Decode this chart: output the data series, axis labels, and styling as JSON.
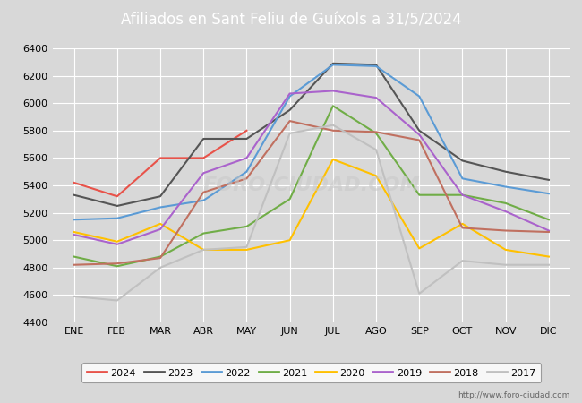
{
  "title": "Afiliados en Sant Feliu de Guíxols a 31/5/2024",
  "title_color": "#ffffff",
  "title_bg_color": "#4169b0",
  "background_color": "#d8d8d8",
  "plot_bg_color": "#d8d8d8",
  "ylim": [
    4400,
    6400
  ],
  "yticks": [
    4400,
    4600,
    4800,
    5000,
    5200,
    5400,
    5600,
    5800,
    6000,
    6200,
    6400
  ],
  "months": [
    "ENE",
    "FEB",
    "MAR",
    "ABR",
    "MAY",
    "JUN",
    "JUL",
    "AGO",
    "SEP",
    "OCT",
    "NOV",
    "DIC"
  ],
  "watermark": "http://www.foro-ciudad.com",
  "series": [
    {
      "label": "2024",
      "color": "#e8534a",
      "data": [
        5420,
        5320,
        5600,
        5600,
        5800,
        null,
        null,
        null,
        null,
        null,
        null,
        null
      ]
    },
    {
      "label": "2023",
      "color": "#555555",
      "data": [
        5330,
        5250,
        5320,
        5740,
        5740,
        5950,
        6290,
        6280,
        5800,
        5580,
        5500,
        5440
      ]
    },
    {
      "label": "2022",
      "color": "#5b9bd5",
      "data": [
        5150,
        5160,
        5240,
        5290,
        5500,
        6050,
        6280,
        6270,
        6050,
        5450,
        5390,
        5340
      ]
    },
    {
      "label": "2021",
      "color": "#70ad47",
      "data": [
        4880,
        4810,
        4880,
        5050,
        5100,
        5300,
        5980,
        5780,
        5330,
        5330,
        5270,
        5150
      ]
    },
    {
      "label": "2020",
      "color": "#ffc000",
      "data": [
        5060,
        4990,
        5120,
        4930,
        4930,
        5000,
        5590,
        5470,
        4940,
        5120,
        4930,
        4880
      ]
    },
    {
      "label": "2019",
      "color": "#aa63cc",
      "data": [
        5040,
        4970,
        5080,
        5490,
        5600,
        6070,
        6090,
        6040,
        5770,
        5330,
        5210,
        5070
      ]
    },
    {
      "label": "2018",
      "color": "#c07060",
      "data": [
        4820,
        4830,
        4870,
        5350,
        5450,
        5870,
        5800,
        5790,
        5730,
        5090,
        5070,
        5060
      ]
    },
    {
      "label": "2017",
      "color": "#c0c0c0",
      "data": [
        4590,
        4560,
        4800,
        4930,
        4950,
        5780,
        5840,
        5660,
        4610,
        4850,
        4820,
        4820
      ]
    }
  ]
}
